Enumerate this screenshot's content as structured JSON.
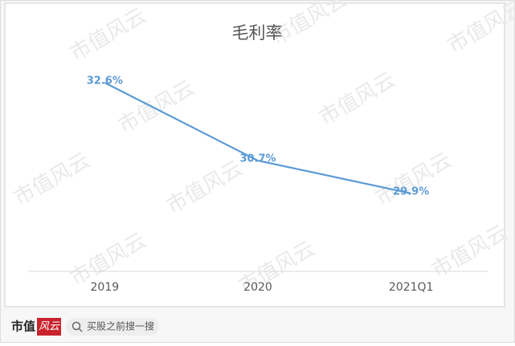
{
  "chart_data": {
    "type": "line",
    "title": "毛利率",
    "categories": [
      "2019",
      "2020",
      "2021Q1"
    ],
    "series": [
      {
        "name": "毛利率",
        "color": "#5b9bd5",
        "values": [
          32.6,
          30.7,
          29.9
        ],
        "value_labels": [
          "32.6%",
          "30.7%",
          "29.9%"
        ]
      }
    ],
    "ylim": [
      28,
      33.5
    ]
  },
  "watermark": "市值风云",
  "footer": {
    "brand": "市值",
    "logo": "风云",
    "search": "买股之前搜一搜"
  }
}
